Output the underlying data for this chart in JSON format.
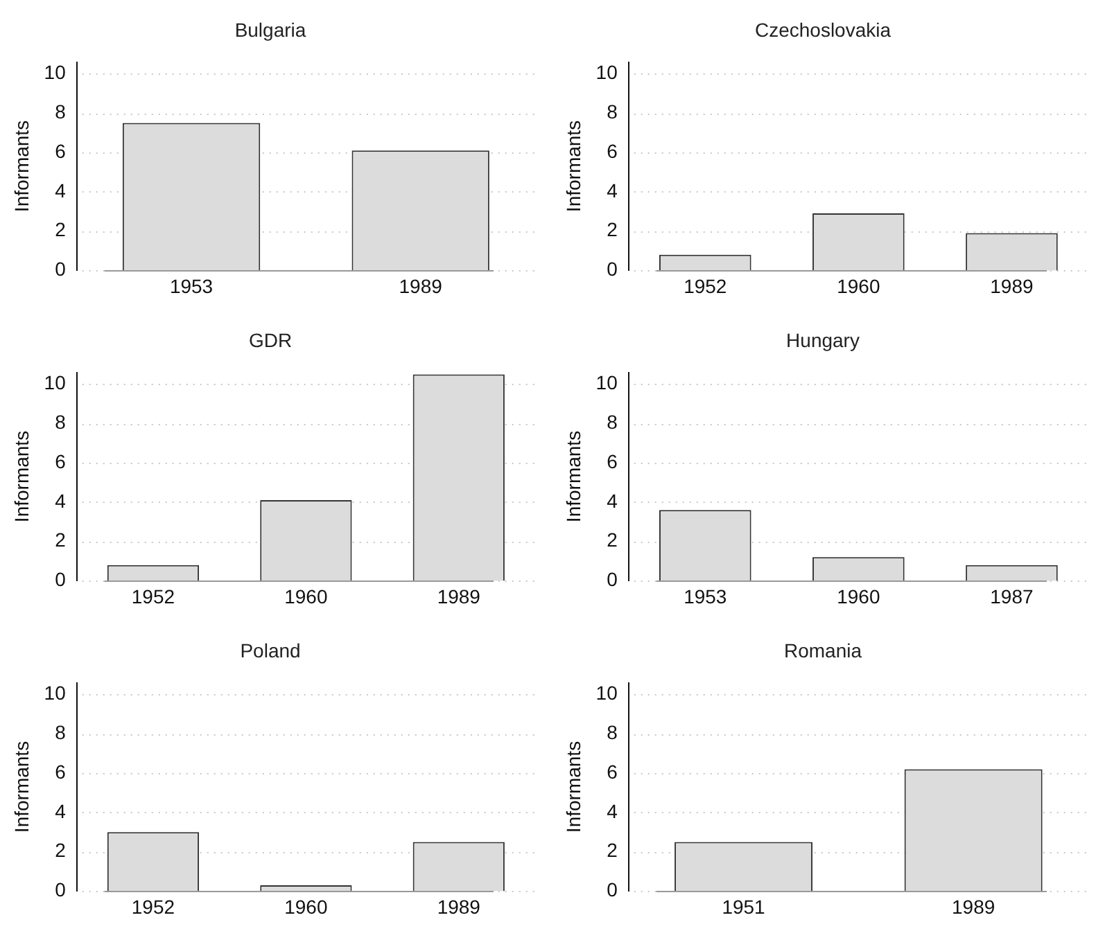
{
  "chart_data": [
    {
      "type": "bar",
      "title": "Bulgaria",
      "ylabel": "Informants",
      "categories": [
        "1953",
        "1989"
      ],
      "values": [
        7.5,
        6.1
      ],
      "color": "#dcdcdc",
      "ylim": [
        0,
        10.6
      ],
      "yticks": [
        0,
        2,
        4,
        6,
        8,
        10
      ],
      "grid": "y"
    },
    {
      "type": "bar",
      "title": "Czechoslovakia",
      "ylabel": "Informants",
      "categories": [
        "1952",
        "1960",
        "1989"
      ],
      "values": [
        0.8,
        2.9,
        1.9
      ],
      "color": "#dcdcdc",
      "ylim": [
        0,
        10.6
      ],
      "yticks": [
        0,
        2,
        4,
        6,
        8,
        10
      ],
      "grid": "y"
    },
    {
      "type": "bar",
      "title": "GDR",
      "ylabel": "Informants",
      "categories": [
        "1952",
        "1960",
        "1989"
      ],
      "values": [
        0.8,
        4.1,
        10.5
      ],
      "color": "#dcdcdc",
      "ylim": [
        0,
        10.6
      ],
      "yticks": [
        0,
        2,
        4,
        6,
        8,
        10
      ],
      "grid": "y"
    },
    {
      "type": "bar",
      "title": "Hungary",
      "ylabel": "Informants",
      "categories": [
        "1953",
        "1960",
        "1987"
      ],
      "values": [
        3.6,
        1.2,
        0.8
      ],
      "color": "#dcdcdc",
      "ylim": [
        0,
        10.6
      ],
      "yticks": [
        0,
        2,
        4,
        6,
        8,
        10
      ],
      "grid": "y"
    },
    {
      "type": "bar",
      "title": "Poland",
      "ylabel": "Informants",
      "categories": [
        "1952",
        "1960",
        "1989"
      ],
      "values": [
        3.0,
        0.3,
        2.5
      ],
      "color": "#dcdcdc",
      "ylim": [
        0,
        10.6
      ],
      "yticks": [
        0,
        2,
        4,
        6,
        8,
        10
      ],
      "grid": "y"
    },
    {
      "type": "bar",
      "title": "Romania",
      "ylabel": "Informants",
      "categories": [
        "1951",
        "1989"
      ],
      "values": [
        2.5,
        6.2
      ],
      "color": "#dcdcdc",
      "ylim": [
        0,
        10.6
      ],
      "yticks": [
        0,
        2,
        4,
        6,
        8,
        10
      ],
      "grid": "y"
    }
  ]
}
